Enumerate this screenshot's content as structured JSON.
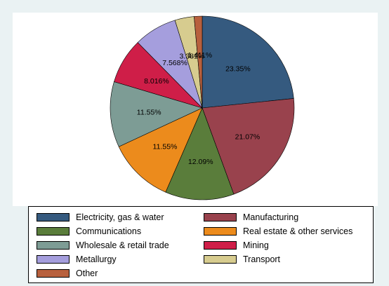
{
  "chart_data": {
    "type": "pie",
    "title": "",
    "legend_placement": "bottom",
    "slices": [
      {
        "name": "Electricity, gas & water",
        "value": 23.35,
        "label": "23.35%",
        "color": "#355a7f"
      },
      {
        "name": "Manufacturing",
        "value": 21.07,
        "label": "21.07%",
        "color": "#99424d"
      },
      {
        "name": "Communications",
        "value": 12.09,
        "label": "12.09%",
        "color": "#5a7d3b"
      },
      {
        "name": "Real estate & other services",
        "value": 11.55,
        "label": "11.55%",
        "color": "#ec8b1c"
      },
      {
        "name": "Wholesale & retail trade",
        "value": 11.55,
        "label": "11.55%",
        "color": "#7d9c95"
      },
      {
        "name": "Mining",
        "value": 8.016,
        "label": "8.016%",
        "color": "#cf1e48"
      },
      {
        "name": "Metallurgy",
        "value": 7.568,
        "label": "7.568%",
        "color": "#a59edd"
      },
      {
        "name": "Transport",
        "value": 3.381,
        "label": "3.381%",
        "color": "#d7cc8f"
      },
      {
        "name": "Other",
        "value": 1.411,
        "label": "1.411%",
        "color": "#b8603d"
      }
    ]
  }
}
